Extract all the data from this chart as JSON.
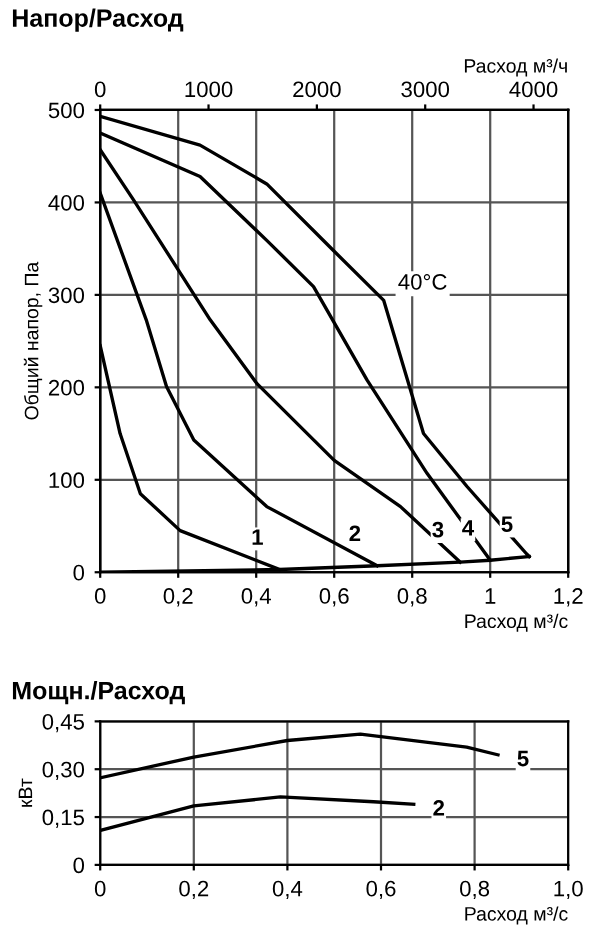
{
  "chart_data": [
    {
      "type": "line",
      "title": "Напор/Расход",
      "xlabel": "Расход м³/с",
      "x2label": "Расход м³/ч",
      "ylabel": "Общий напор, Па",
      "xlim": [
        0,
        1.2
      ],
      "xticks": [
        0,
        {
          "value": 0.2,
          "label": "0,2"
        },
        {
          "value": 0.4,
          "label": "0,4"
        },
        {
          "value": 0.6,
          "label": "0,6"
        },
        {
          "value": 0.8,
          "label": "0,8"
        },
        1,
        {
          "value": 1.2,
          "label": "1,2"
        }
      ],
      "x2lim": [
        0,
        4320
      ],
      "x2ticks": [
        0,
        1000,
        2000,
        3000,
        4000
      ],
      "ylim": [
        0,
        500
      ],
      "yticks": [
        0,
        100,
        200,
        300,
        400,
        500
      ],
      "grid": true,
      "series": [
        {
          "name": "5",
          "color": "#000000",
          "x": [
            0,
            0.256,
            0.427,
            0.598,
            0.727,
            0.829,
            0.94,
            1.093,
            1.1
          ],
          "values": [
            493,
            462,
            420,
            348,
            294,
            150,
            93,
            20,
            17
          ]
        },
        {
          "name": "4",
          "color": "#000000",
          "x": [
            0,
            0.256,
            0.427,
            0.547,
            0.684,
            0.838,
            1.0
          ],
          "values": [
            475,
            428,
            359,
            309,
            208,
            107,
            13
          ]
        },
        {
          "name": "3",
          "color": "#000000",
          "x": [
            0,
            0.085,
            0.282,
            0.402,
            0.6,
            0.77,
            0.923
          ],
          "values": [
            457,
            403,
            273,
            204,
            121,
            71,
            11
          ]
        },
        {
          "name": "2",
          "color": "#000000",
          "x": [
            0,
            0.118,
            0.17,
            0.24,
            0.427,
            0.71
          ],
          "values": [
            410,
            273,
            201,
            143,
            71,
            7
          ]
        },
        {
          "name": "1",
          "color": "#000000",
          "x": [
            0,
            0.051,
            0.103,
            0.205,
            0.46
          ],
          "values": [
            245,
            150,
            85,
            45,
            3
          ]
        },
        {
          "color": "#000000",
          "x": [
            0,
            0.46,
            0.71,
            0.923,
            1.0,
            1.1
          ],
          "values": [
            0,
            3,
            7,
            11,
            13,
            17
          ]
        }
      ],
      "annotations": [
        {
          "text": "40°C",
          "x": 0.727,
          "y": 294
        }
      ]
    },
    {
      "type": "line",
      "title": "Мощн./Расход",
      "xlabel": "Расход м³/с",
      "ylabel": "кВт",
      "xlim": [
        0,
        1.0
      ],
      "xticks": [
        0,
        {
          "value": 0.2,
          "label": "0,2"
        },
        {
          "value": 0.4,
          "label": "0,4"
        },
        {
          "value": 0.6,
          "label": "0,6"
        },
        {
          "value": 0.8,
          "label": "0,8"
        },
        {
          "value": 1.0,
          "label": "1,0"
        }
      ],
      "ylim": [
        0,
        0.45
      ],
      "yticks": [
        0,
        {
          "value": 0.15,
          "label": "0,15"
        },
        {
          "value": 0.3,
          "label": "0,30"
        },
        {
          "value": 0.45,
          "label": "0,45"
        }
      ],
      "grid": true,
      "series": [
        {
          "name": "5",
          "color": "#000000",
          "x": [
            0,
            0.2,
            0.4,
            0.556,
            0.783,
            0.85
          ],
          "values": [
            0.273,
            0.338,
            0.39,
            0.41,
            0.369,
            0.345
          ]
        },
        {
          "name": "2",
          "color": "#000000",
          "x": [
            0,
            0.2,
            0.385,
            0.584,
            0.67
          ],
          "values": [
            0.108,
            0.185,
            0.213,
            0.198,
            0.19
          ]
        }
      ]
    }
  ]
}
